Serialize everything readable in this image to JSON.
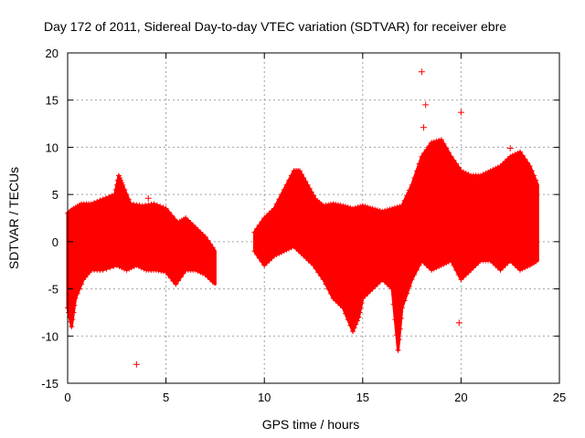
{
  "chart_data": {
    "type": "scatter",
    "title": "Day 172 of 2011, Sidereal Day-to-day VTEC variation (SDTVAR) for receiver ebre",
    "xlabel": "GPS time / hours",
    "ylabel": "SDTVAR / TECUs",
    "xlim": [
      0,
      25
    ],
    "ylim": [
      -15,
      20
    ],
    "xticks": [
      0,
      5,
      10,
      15,
      20,
      25
    ],
    "yticks": [
      -15,
      -10,
      -5,
      0,
      5,
      10,
      15,
      20
    ],
    "grid": true,
    "marker": "+",
    "color": "#ff0000",
    "envelope": {
      "description": "dense band of points: min/max SDTVAR over time",
      "segments": [
        [
          [
            0.0,
            -7
          ],
          [
            0.2,
            -9
          ],
          [
            0.4,
            -6
          ],
          [
            0.8,
            -4
          ],
          [
            1.2,
            -3
          ],
          [
            1.8,
            -3
          ],
          [
            2.5,
            -2.5
          ],
          [
            3.0,
            -3
          ],
          [
            3.5,
            -2.5
          ],
          [
            4.0,
            -3
          ],
          [
            4.5,
            -3
          ],
          [
            5.0,
            -3.2
          ],
          [
            5.5,
            -4.5
          ],
          [
            6.0,
            -3
          ],
          [
            6.5,
            -3
          ],
          [
            7.0,
            -3.5
          ],
          [
            7.5,
            -4.5
          ]
        ],
        [
          [
            9.5,
            -1
          ],
          [
            10.0,
            -2.5
          ],
          [
            10.5,
            -1.5
          ],
          [
            11.0,
            -1
          ],
          [
            11.5,
            -0.5
          ],
          [
            12.0,
            -1.5
          ],
          [
            12.5,
            -2.5
          ],
          [
            13.0,
            -4
          ],
          [
            13.5,
            -6
          ],
          [
            14.0,
            -7
          ],
          [
            14.5,
            -9.5
          ],
          [
            14.8,
            -8
          ],
          [
            15.0,
            -6
          ],
          [
            15.5,
            -5
          ],
          [
            16.0,
            -4
          ],
          [
            16.5,
            -5
          ],
          [
            16.8,
            -11.5
          ],
          [
            17.0,
            -7
          ],
          [
            17.5,
            -4
          ],
          [
            18.0,
            -2
          ],
          [
            18.5,
            -3
          ],
          [
            19.0,
            -2.5
          ],
          [
            19.5,
            -2
          ],
          [
            20.0,
            -4
          ],
          [
            20.5,
            -3
          ],
          [
            21.0,
            -2
          ],
          [
            21.5,
            -2
          ],
          [
            22.0,
            -3
          ],
          [
            22.5,
            -2
          ],
          [
            23.0,
            -3
          ],
          [
            23.5,
            -2.5
          ],
          [
            23.9,
            -2
          ]
        ]
      ],
      "upper": [
        [
          [
            0.0,
            3
          ],
          [
            0.3,
            3.5
          ],
          [
            0.7,
            4
          ],
          [
            1.2,
            4
          ],
          [
            1.8,
            4.5
          ],
          [
            2.4,
            5
          ],
          [
            2.6,
            7
          ],
          [
            2.8,
            6
          ],
          [
            3.2,
            4
          ],
          [
            3.8,
            3.8
          ],
          [
            4.4,
            4
          ],
          [
            5.0,
            3.5
          ],
          [
            5.6,
            2
          ],
          [
            6.0,
            2.5
          ],
          [
            6.5,
            1.5
          ],
          [
            7.0,
            0.5
          ],
          [
            7.5,
            -1
          ]
        ],
        [
          [
            9.5,
            1
          ],
          [
            10.0,
            2.5
          ],
          [
            10.5,
            3.5
          ],
          [
            11.0,
            5.5
          ],
          [
            11.5,
            7.5
          ],
          [
            11.8,
            7.5
          ],
          [
            12.2,
            6
          ],
          [
            12.6,
            4.5
          ],
          [
            13.0,
            3.8
          ],
          [
            13.5,
            4
          ],
          [
            14.0,
            3.8
          ],
          [
            14.5,
            3.5
          ],
          [
            15.0,
            3.8
          ],
          [
            15.5,
            3.5
          ],
          [
            16.0,
            3.2
          ],
          [
            16.5,
            3.5
          ],
          [
            17.0,
            3.8
          ],
          [
            17.5,
            6
          ],
          [
            18.0,
            9
          ],
          [
            18.5,
            10.5
          ],
          [
            19.0,
            10.8
          ],
          [
            19.5,
            9
          ],
          [
            20.0,
            7.5
          ],
          [
            20.5,
            7
          ],
          [
            21.0,
            7
          ],
          [
            21.5,
            7.5
          ],
          [
            22.0,
            8
          ],
          [
            22.5,
            9
          ],
          [
            23.0,
            9.5
          ],
          [
            23.5,
            8
          ],
          [
            23.9,
            6
          ]
        ]
      ]
    },
    "outliers": [
      {
        "x": 3.5,
        "y": -13
      },
      {
        "x": 18.0,
        "y": 18
      },
      {
        "x": 18.2,
        "y": 14.5
      },
      {
        "x": 20.0,
        "y": 13.7
      },
      {
        "x": 19.9,
        "y": -8.6
      },
      {
        "x": 15.3,
        "y": -4.8
      },
      {
        "x": 18.1,
        "y": 12.1
      },
      {
        "x": 22.5,
        "y": 9.9
      },
      {
        "x": 4.1,
        "y": 4.6
      }
    ]
  }
}
